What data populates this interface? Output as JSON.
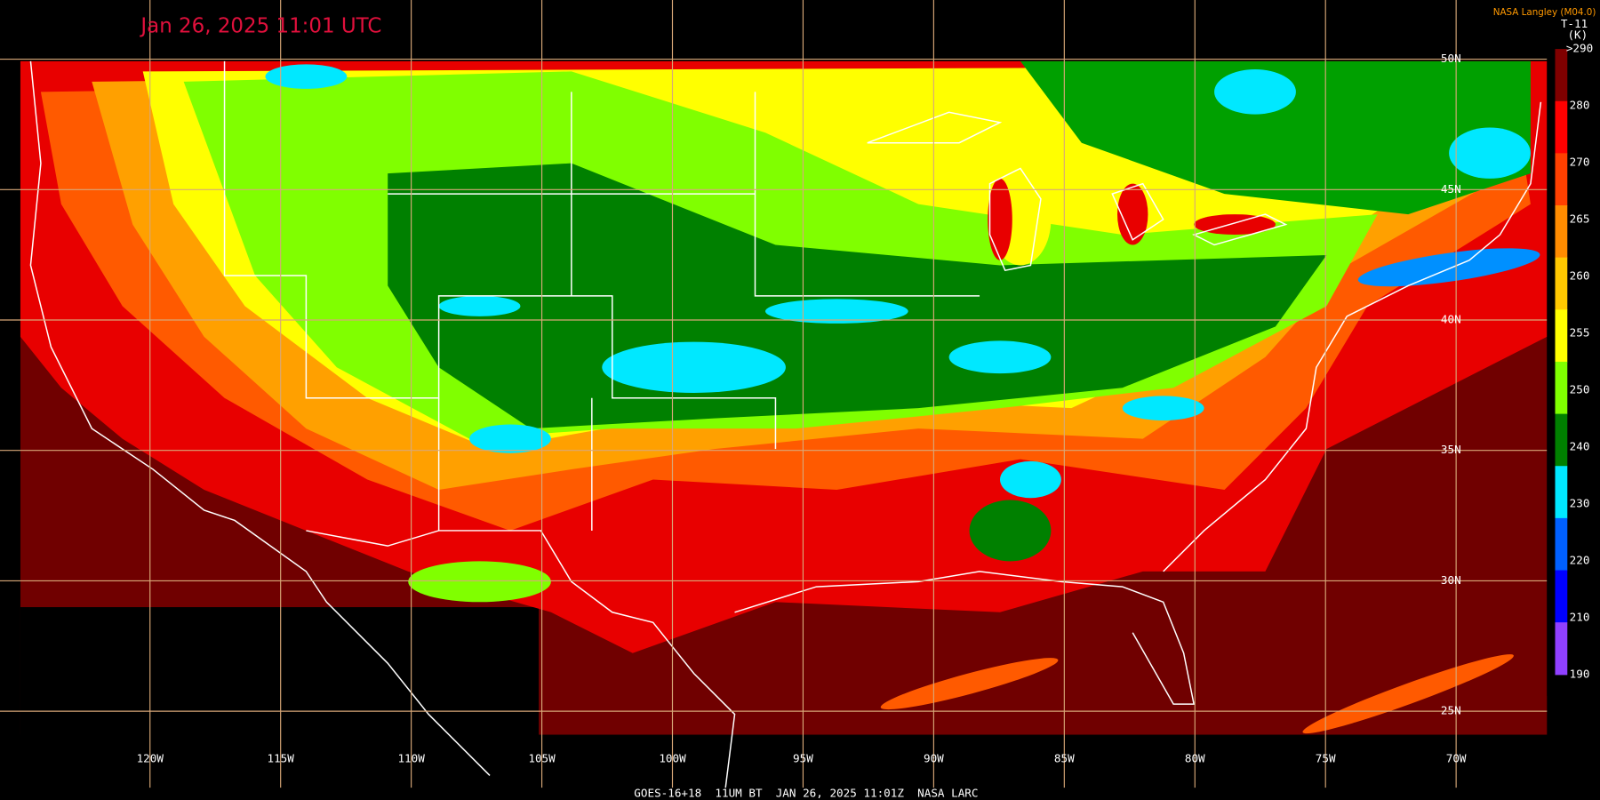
{
  "header": {
    "title": "Jan 26, 2025 11:01 UTC",
    "credit": "NASA Langley (M04.0)"
  },
  "colorbar": {
    "title": "T-11",
    "unit": "(K)",
    "ticks": [
      {
        "value": 290,
        "label": ">290"
      },
      280,
      270,
      265,
      260,
      255,
      250,
      240,
      230,
      220,
      210,
      190
    ]
  },
  "map": {
    "longitude_labels": [
      "120W",
      "115W",
      "110W",
      "105W",
      "100W",
      "95W",
      "90W",
      "85W",
      "80W",
      "75W",
      "70W"
    ],
    "latitude_labels": [
      "50N",
      "45N",
      "40N",
      "35N",
      "30N",
      "25N"
    ]
  },
  "footer": "GOES-16+18  11UM BT  JAN 26, 2025 11:01Z  NASA LARC"
}
